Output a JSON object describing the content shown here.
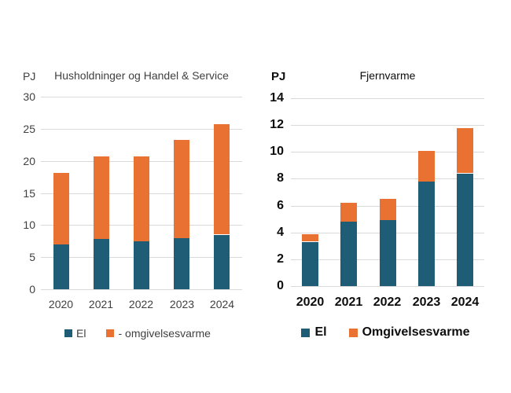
{
  "page": {
    "background": "#FFFFFF"
  },
  "colors": {
    "el": "#1F5C75",
    "omgivelsesvarme": "#E97132",
    "gridline": "#D9D9D9",
    "left_chart_text": "#404040",
    "right_chart_text": "#0D0D0D"
  },
  "chart_data": [
    {
      "id": "households-trade-service",
      "type": "bar",
      "stacked": true,
      "title": "Husholdninger og Handel & Service",
      "unit_label": "PJ",
      "categories": [
        "2020",
        "2021",
        "2022",
        "2023",
        "2024"
      ],
      "series": [
        {
          "name": "El",
          "color": "#1F5C75",
          "values": [
            7.0,
            7.8,
            7.5,
            8.0,
            8.5
          ]
        },
        {
          "name": "- omgivelsesvarme",
          "color": "#E97132",
          "values": [
            11.1,
            12.9,
            13.2,
            15.3,
            17.2
          ]
        }
      ],
      "totals": [
        18.1,
        20.7,
        20.7,
        23.3,
        25.7
      ],
      "ylim": [
        0,
        30
      ],
      "yticks": [
        0,
        5,
        10,
        15,
        20,
        25,
        30
      ],
      "grid": true,
      "legend_position": "bottom"
    },
    {
      "id": "district-heating",
      "type": "bar",
      "stacked": true,
      "title": "Fjernvarme",
      "unit_label": "PJ",
      "categories": [
        "2020",
        "2021",
        "2022",
        "2023",
        "2024"
      ],
      "series": [
        {
          "name": "El",
          "color": "#1F5C75",
          "values": [
            3.3,
            4.8,
            4.9,
            7.8,
            8.4
          ]
        },
        {
          "name": "Omgivelsesvarme",
          "color": "#E97132",
          "values": [
            0.55,
            1.4,
            1.6,
            2.3,
            3.35
          ]
        }
      ],
      "totals": [
        3.85,
        6.2,
        6.5,
        10.1,
        11.75
      ],
      "ylim": [
        0,
        14
      ],
      "yticks": [
        0,
        2,
        4,
        6,
        8,
        10,
        12,
        14
      ],
      "grid": true,
      "legend_position": "bottom"
    }
  ]
}
